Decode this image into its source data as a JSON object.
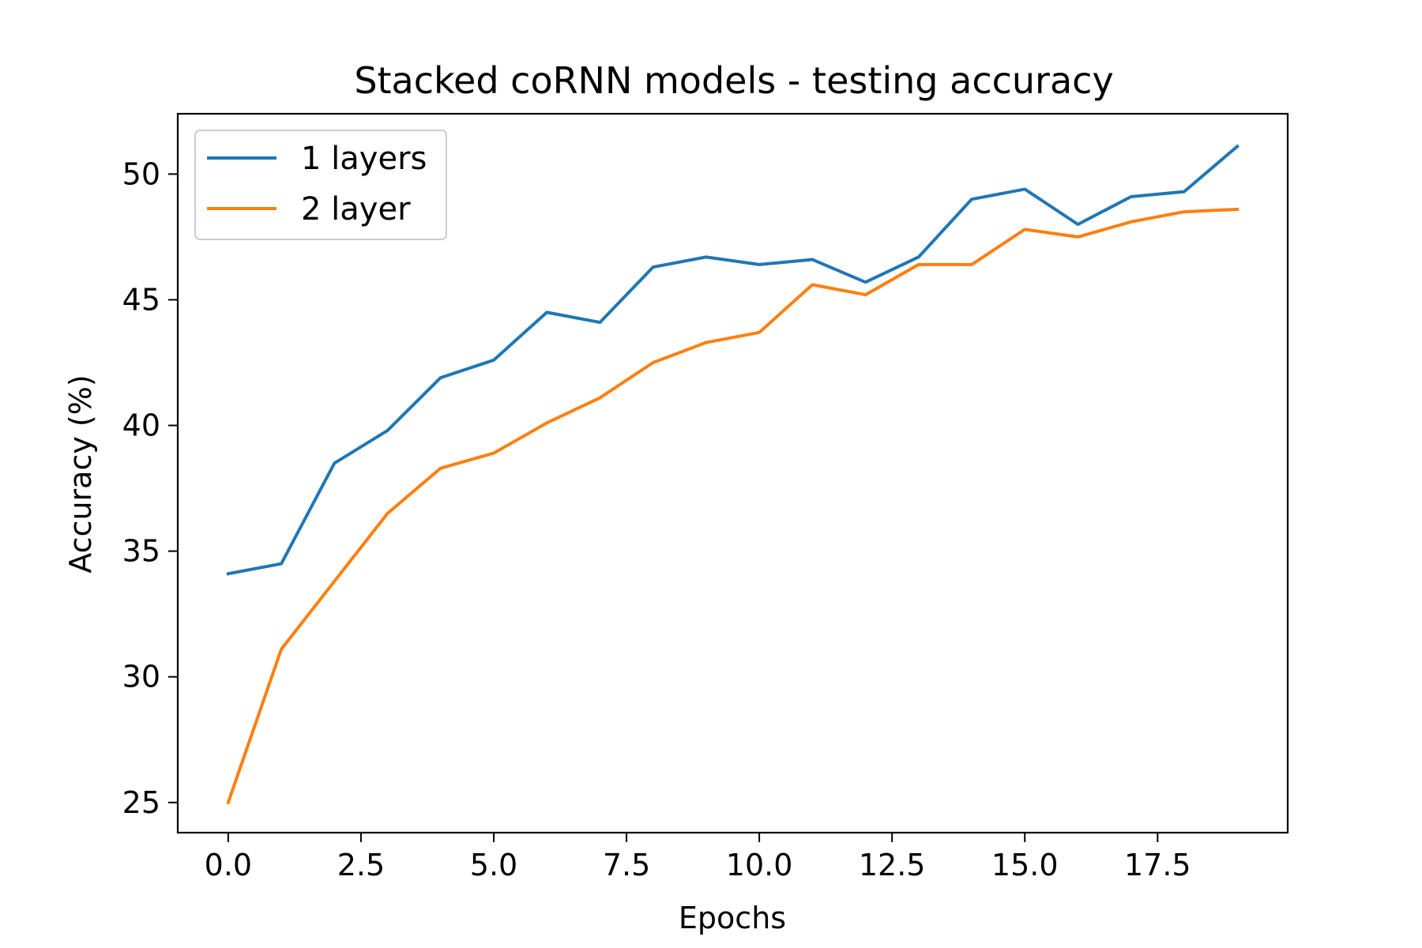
{
  "chart_data": {
    "type": "line",
    "title": "Stacked coRNN models - testing accuracy",
    "xlabel": "Epochs",
    "ylabel": "Accuracy (%)",
    "xlim": [
      -0.95,
      19.95
    ],
    "ylim": [
      23.8,
      52.4
    ],
    "x_ticks": [
      0.0,
      2.5,
      5.0,
      7.5,
      10.0,
      12.5,
      15.0,
      17.5
    ],
    "x_tick_labels": [
      "0.0",
      "2.5",
      "5.0",
      "7.5",
      "10.0",
      "12.5",
      "15.0",
      "17.5"
    ],
    "y_ticks": [
      25,
      30,
      35,
      40,
      45,
      50
    ],
    "y_tick_labels": [
      "25",
      "30",
      "35",
      "40",
      "45",
      "50"
    ],
    "grid": false,
    "legend_position": "upper-left",
    "x": [
      0,
      1,
      2,
      3,
      4,
      5,
      6,
      7,
      8,
      9,
      10,
      11,
      12,
      13,
      14,
      15,
      16,
      17,
      18,
      19
    ],
    "series": [
      {
        "name": "1 layers",
        "color": "#1f77b4",
        "values": [
          34.1,
          34.5,
          38.5,
          39.8,
          41.9,
          42.6,
          44.5,
          44.1,
          46.3,
          46.7,
          46.4,
          46.6,
          45.7,
          46.7,
          49.0,
          49.4,
          48.0,
          49.1,
          49.3,
          51.1
        ]
      },
      {
        "name": "2 layer",
        "color": "#ff7f0e",
        "values": [
          25.0,
          31.1,
          33.8,
          36.5,
          38.3,
          38.9,
          40.1,
          41.1,
          42.5,
          43.3,
          43.7,
          45.6,
          45.2,
          46.4,
          46.4,
          47.8,
          47.5,
          48.1,
          48.5,
          48.6
        ]
      }
    ]
  }
}
